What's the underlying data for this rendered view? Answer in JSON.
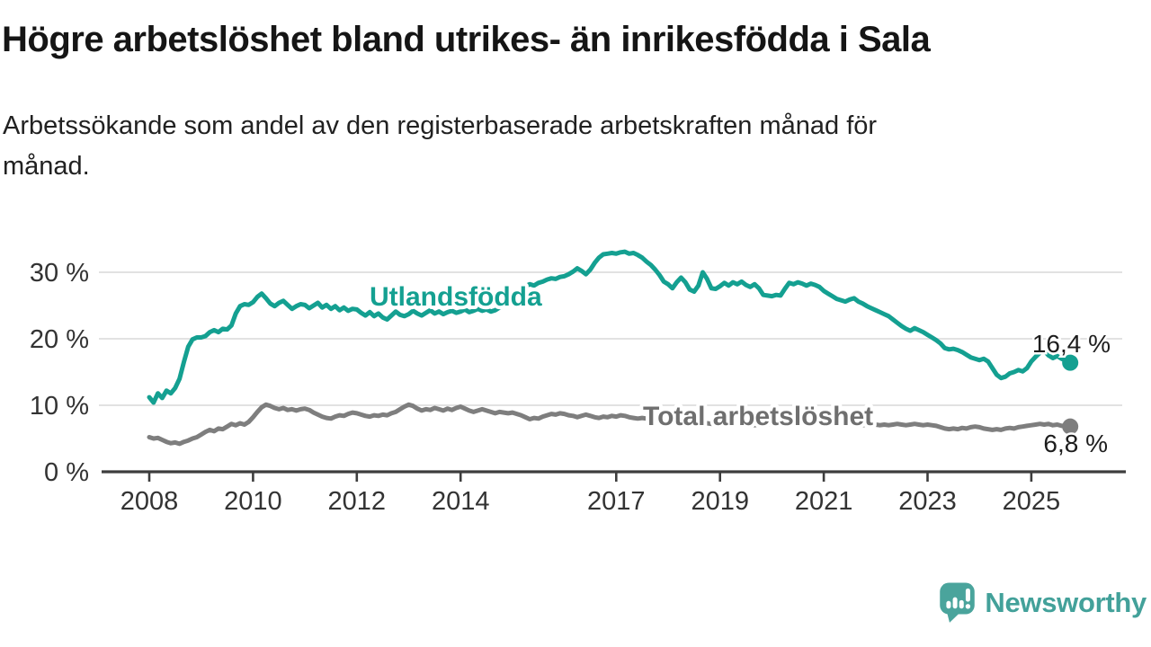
{
  "chart_data": {
    "type": "line",
    "title": "Högre arbetslöshet bland utrikes- än inrikesfödda i Sala",
    "subtitle_line1": "Arbetssökande som andel av den registerbaserade arbetskraften månad för",
    "subtitle_line2": "månad.",
    "unit": "%",
    "frequency": "monthly",
    "x_start": "2008-01",
    "x_end": "2025-10",
    "grid": "horizontal",
    "legend_position": "inline-labels",
    "ylim": [
      0,
      34
    ],
    "x_tick_years": [
      2008,
      2010,
      2012,
      2014,
      2017,
      2019,
      2021,
      2023,
      2025
    ],
    "y_ticks": [
      {
        "value": 0,
        "label": "0 %"
      },
      {
        "value": 10,
        "label": "10 %"
      },
      {
        "value": 20,
        "label": "20 %"
      },
      {
        "value": 30,
        "label": "30 %"
      }
    ],
    "series": [
      {
        "name": "Utlandsfödda",
        "color": "#14a091",
        "label_color": "#14a091",
        "end_value": 16.4,
        "end_value_label": "16,4 %",
        "values": [
          11.2,
          10.4,
          11.8,
          11.1,
          12.2,
          11.8,
          12.6,
          14.0,
          16.5,
          18.8,
          19.9,
          20.2,
          20.2,
          20.4,
          21.0,
          21.3,
          21.0,
          21.5,
          21.4,
          22.0,
          23.8,
          24.9,
          25.2,
          25.1,
          25.5,
          26.3,
          26.8,
          26.1,
          25.3,
          24.9,
          25.4,
          25.7,
          25.1,
          24.5,
          24.9,
          25.2,
          25.1,
          24.6,
          25.0,
          25.4,
          24.7,
          25.1,
          24.5,
          24.9,
          24.3,
          24.7,
          24.2,
          24.5,
          24.4,
          23.9,
          23.5,
          24.0,
          23.4,
          23.8,
          23.2,
          22.9,
          23.5,
          24.1,
          23.6,
          23.4,
          23.7,
          24.2,
          23.8,
          23.5,
          23.9,
          24.3,
          23.8,
          24.1,
          23.7,
          24.0,
          24.2,
          23.9,
          24.1,
          24.4,
          24.0,
          24.2,
          24.5,
          24.2,
          24.4,
          24.1,
          24.3,
          24.7,
          25.1,
          25.7,
          26.3,
          26.9,
          27.4,
          27.9,
          28.2,
          28.0,
          28.4,
          28.6,
          28.9,
          29.1,
          29.0,
          29.3,
          29.4,
          29.7,
          30.1,
          30.6,
          30.2,
          29.7,
          30.4,
          31.4,
          32.2,
          32.7,
          32.8,
          32.9,
          32.8,
          33.0,
          33.1,
          32.8,
          32.9,
          32.6,
          32.2,
          31.6,
          31.1,
          30.4,
          29.6,
          28.6,
          28.2,
          27.6,
          28.5,
          29.2,
          28.5,
          27.4,
          27.1,
          28.0,
          30.0,
          29.0,
          27.6,
          27.5,
          27.9,
          28.4,
          28.0,
          28.5,
          28.2,
          28.6,
          28.1,
          27.8,
          28.2,
          27.6,
          26.6,
          26.5,
          26.4,
          26.6,
          26.5,
          27.5,
          28.4,
          28.2,
          28.5,
          28.3,
          28.0,
          28.3,
          28.1,
          27.8,
          27.2,
          26.8,
          26.4,
          26.0,
          25.8,
          25.6,
          25.9,
          26.1,
          25.6,
          25.3,
          24.9,
          24.6,
          24.3,
          24.0,
          23.7,
          23.4,
          22.9,
          22.4,
          21.9,
          21.5,
          21.2,
          21.6,
          21.3,
          21.0,
          20.6,
          20.2,
          19.8,
          19.3,
          18.6,
          18.4,
          18.5,
          18.3,
          18.0,
          17.6,
          17.2,
          17.0,
          16.8,
          17.0,
          16.6,
          15.6,
          14.6,
          14.1,
          14.3,
          14.8,
          15.0,
          15.3,
          15.1,
          15.6,
          16.6,
          17.3,
          17.9,
          18.2,
          17.5,
          17.1,
          17.4,
          17.0,
          16.7,
          16.4
        ]
      },
      {
        "name": "Total arbetslöshet",
        "color": "#7e7e7e",
        "label_color": "#6f6f6f",
        "end_value": 6.8,
        "end_value_label": "6,8 %",
        "values": [
          5.2,
          5.0,
          5.1,
          4.8,
          4.5,
          4.3,
          4.4,
          4.2,
          4.5,
          4.7,
          5.0,
          5.2,
          5.6,
          6.0,
          6.3,
          6.1,
          6.5,
          6.4,
          6.8,
          7.2,
          7.0,
          7.3,
          7.1,
          7.5,
          8.2,
          9.0,
          9.7,
          10.1,
          9.9,
          9.6,
          9.4,
          9.6,
          9.3,
          9.4,
          9.2,
          9.4,
          9.5,
          9.3,
          8.9,
          8.6,
          8.3,
          8.1,
          8.0,
          8.3,
          8.5,
          8.4,
          8.7,
          8.9,
          8.8,
          8.6,
          8.4,
          8.3,
          8.5,
          8.4,
          8.6,
          8.5,
          8.8,
          9.0,
          9.4,
          9.8,
          10.1,
          9.9,
          9.5,
          9.2,
          9.4,
          9.3,
          9.6,
          9.4,
          9.2,
          9.5,
          9.3,
          9.6,
          9.8,
          9.5,
          9.2,
          9.0,
          9.2,
          9.4,
          9.2,
          9.0,
          8.8,
          9.0,
          8.9,
          8.8,
          8.9,
          8.7,
          8.5,
          8.2,
          7.9,
          8.1,
          8.0,
          8.3,
          8.5,
          8.7,
          8.6,
          8.8,
          8.7,
          8.5,
          8.4,
          8.2,
          8.4,
          8.6,
          8.4,
          8.2,
          8.1,
          8.3,
          8.2,
          8.4,
          8.3,
          8.5,
          8.4,
          8.2,
          8.1,
          8.0,
          8.1,
          8.0,
          7.9,
          7.8,
          7.9,
          7.8,
          7.7,
          7.6,
          7.7,
          7.5,
          7.4,
          7.5,
          7.4,
          7.3,
          7.4,
          7.3,
          7.2,
          7.3,
          7.4,
          7.3,
          7.2,
          7.3,
          7.2,
          7.1,
          7.2,
          7.1,
          7.0,
          7.1,
          7.0,
          7.1,
          7.2,
          7.3,
          7.5,
          7.8,
          7.9,
          7.8,
          7.7,
          7.6,
          7.5,
          7.6,
          7.5,
          7.4,
          7.5,
          7.4,
          7.3,
          7.2,
          7.3,
          7.2,
          7.1,
          7.2,
          7.1,
          7.0,
          7.1,
          7.0,
          7.1,
          7.0,
          7.1,
          7.0,
          7.1,
          7.2,
          7.1,
          7.0,
          7.1,
          7.2,
          7.1,
          7.0,
          7.1,
          7.0,
          6.9,
          6.7,
          6.5,
          6.4,
          6.5,
          6.4,
          6.6,
          6.5,
          6.7,
          6.8,
          6.7,
          6.5,
          6.4,
          6.3,
          6.4,
          6.3,
          6.5,
          6.6,
          6.5,
          6.7,
          6.8,
          6.9,
          7.0,
          7.1,
          7.2,
          7.1,
          7.2,
          7.0,
          7.1,
          6.9,
          6.9,
          6.8
        ]
      }
    ]
  },
  "style": {
    "grid_color": "#d8d8d8",
    "axis_color": "#3d3d3d",
    "tick_label_color": "#333333",
    "value_label_color": "#1d1d1d"
  },
  "branding": {
    "logo_text": "Newsworthy",
    "logo_color": "#43a19a"
  }
}
